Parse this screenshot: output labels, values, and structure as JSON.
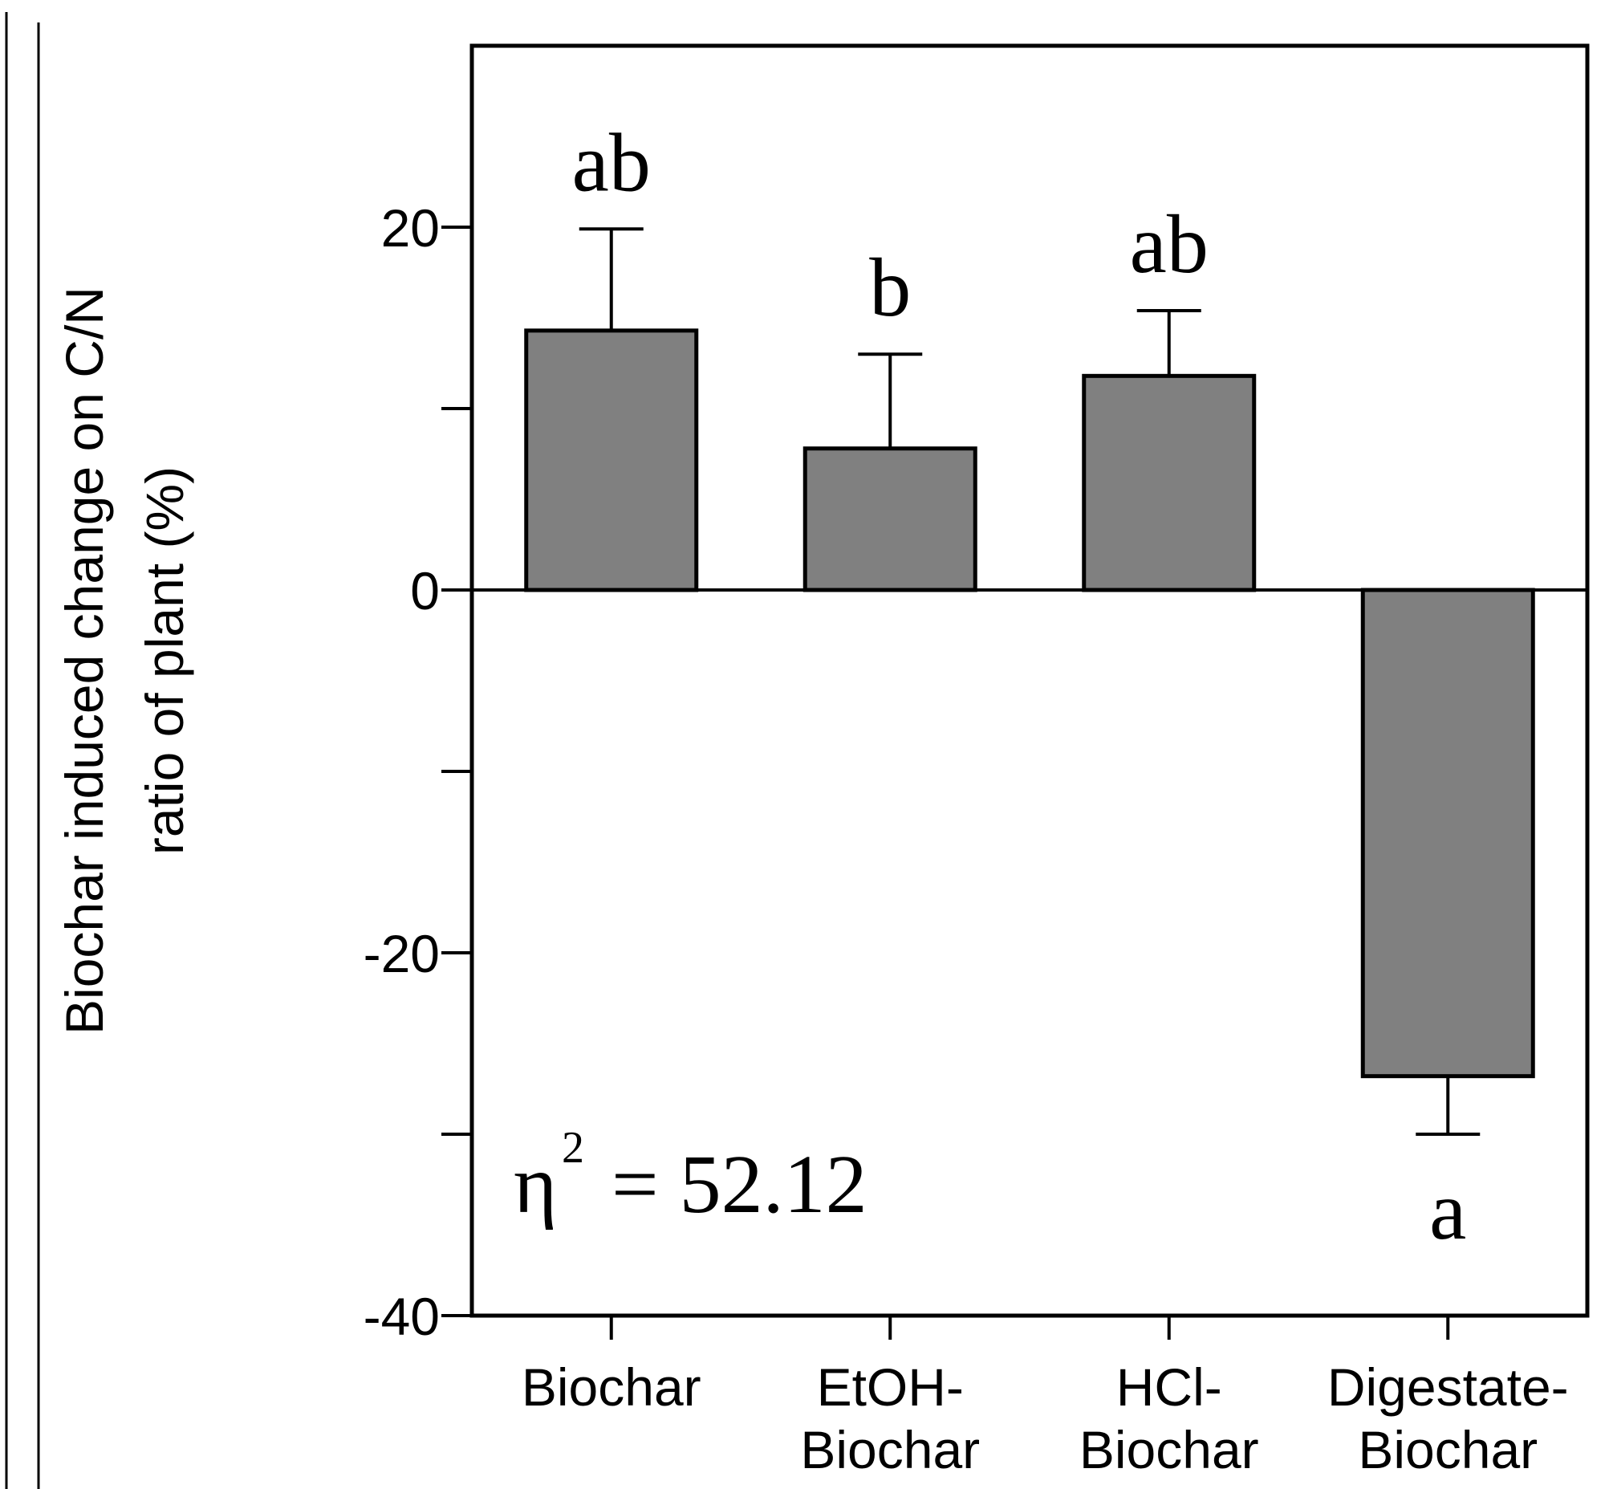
{
  "chart_data": {
    "type": "bar",
    "categories": [
      [
        "Biochar"
      ],
      [
        "EtOH-",
        "Biochar"
      ],
      [
        "HCl-",
        "Biochar"
      ],
      [
        "Digestate-",
        "Biochar"
      ]
    ],
    "values": [
      14.3,
      7.8,
      11.8,
      -26.8
    ],
    "errors": [
      5.6,
      5.2,
      3.6,
      3.2
    ],
    "significance_labels": [
      "ab",
      "b",
      "ab",
      "a"
    ],
    "ylabel_lines": [
      "Biochar induced change on C/N",
      "ratio of plant (%)"
    ],
    "xlabel": "",
    "ylim": [
      -40,
      30
    ],
    "yticks_major": [
      20,
      0,
      -20,
      -40
    ],
    "yticks_minor": [
      10,
      -10,
      -30
    ],
    "stat": {
      "symbol": "η",
      "superscript": "2",
      "text": "= 52.12"
    },
    "zero_line": true,
    "grid": false,
    "legend": "none",
    "colors": {
      "bar_fill": "#808080",
      "stroke": "#000000"
    }
  }
}
